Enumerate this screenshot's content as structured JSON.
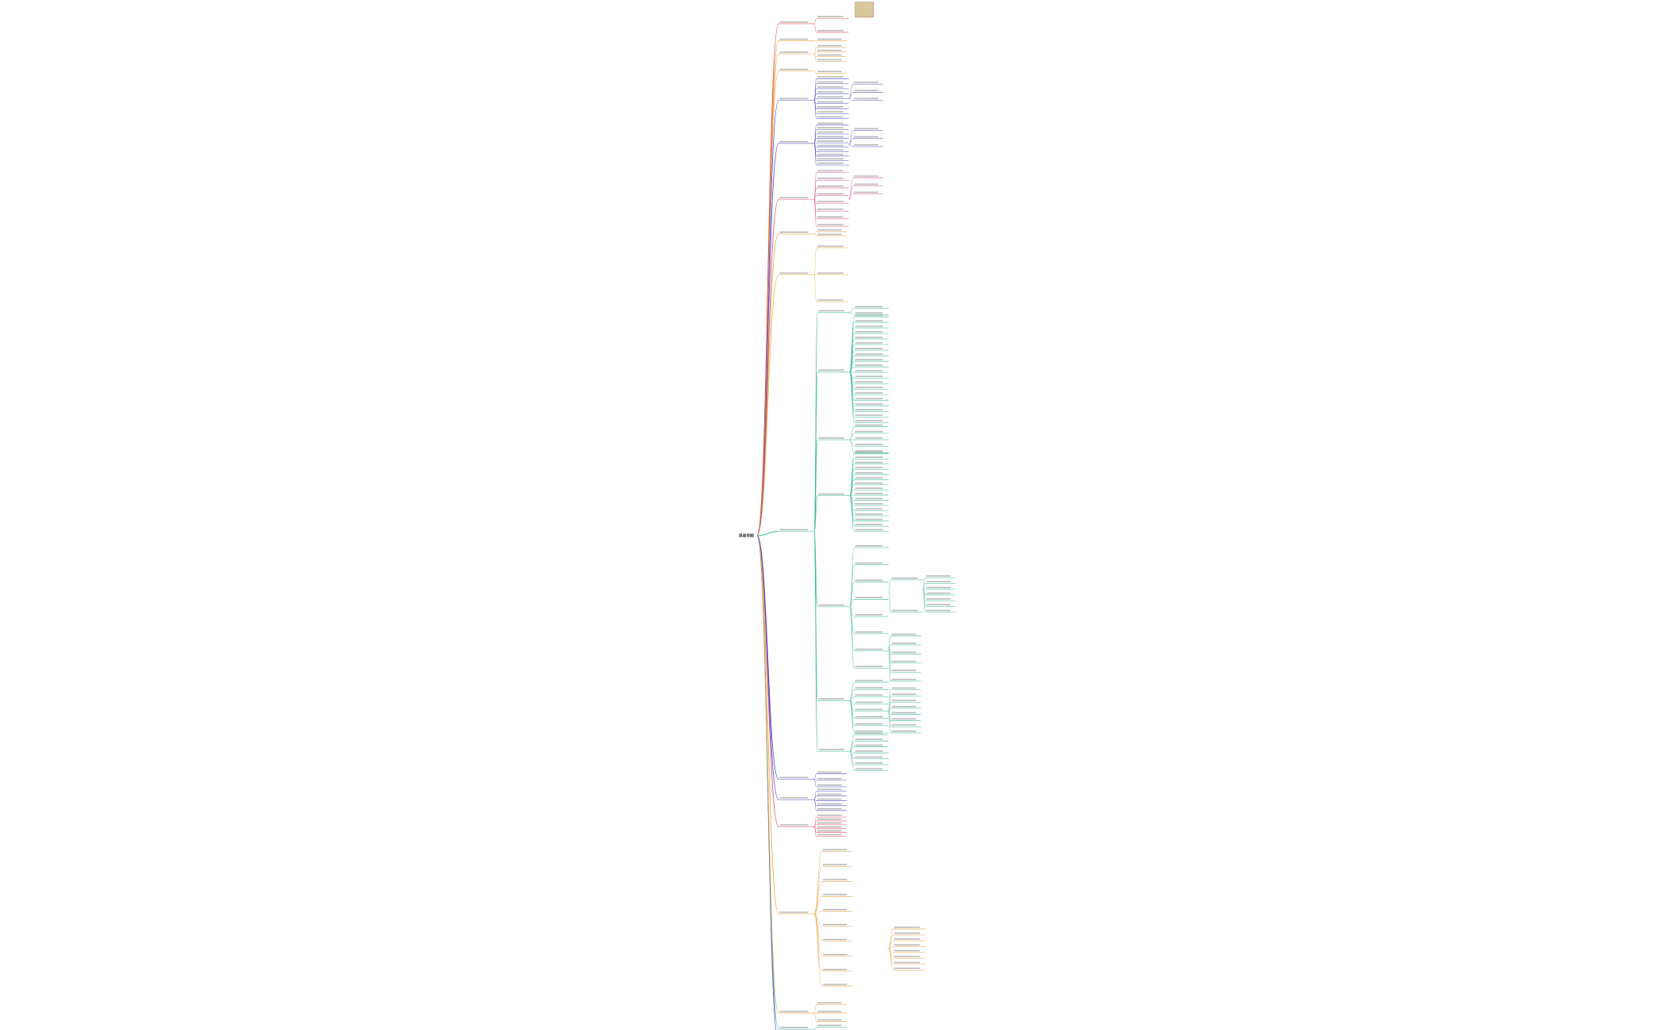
{
  "mindmap": {
    "root": "思维导图"
  }
}
